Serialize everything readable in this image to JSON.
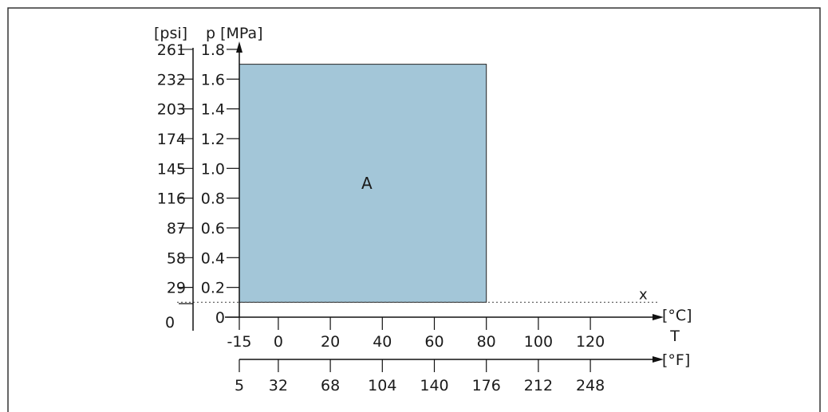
{
  "chart_data": {
    "type": "area",
    "title": "",
    "y_axis": {
      "unit_label": "p [MPa]",
      "range": [
        0,
        1.8
      ],
      "ticks": [
        0,
        0.2,
        0.4,
        0.6,
        0.8,
        1.0,
        1.2,
        1.4,
        1.6,
        1.8
      ],
      "tick_labels": [
        "0",
        "0.2",
        "0.4",
        "0.6",
        "0.8",
        "1.0",
        "1.2",
        "1.4",
        "1.6",
        "1.8"
      ]
    },
    "y2_axis": {
      "unit_label": "[psi]",
      "tick_labels": [
        "0",
        "29",
        "58",
        "87",
        "116",
        "145",
        "174",
        "203",
        "232",
        "261"
      ]
    },
    "x_axis": {
      "unit_label": "[°C]",
      "symbol": "T",
      "range": [
        -15,
        140
      ],
      "ticks": [
        -15,
        0,
        20,
        40,
        60,
        80,
        100,
        120
      ],
      "tick_labels": [
        "-15",
        "0",
        "20",
        "40",
        "60",
        "80",
        "100",
        "120"
      ]
    },
    "x2_axis": {
      "unit_label": "[°F]",
      "ticks_c": [
        -15,
        0,
        20,
        40,
        60,
        80,
        100,
        120
      ],
      "tick_labels": [
        "5",
        "32",
        "68",
        "104",
        "140",
        "176",
        "212",
        "248"
      ]
    },
    "region": {
      "label": "A",
      "t_min": -15,
      "t_max": 80,
      "p_min": 0.1,
      "p_max": 1.7,
      "color": "#a3c6d8"
    },
    "reference_line": {
      "label": "x",
      "p": 0.1
    },
    "grid": false
  }
}
